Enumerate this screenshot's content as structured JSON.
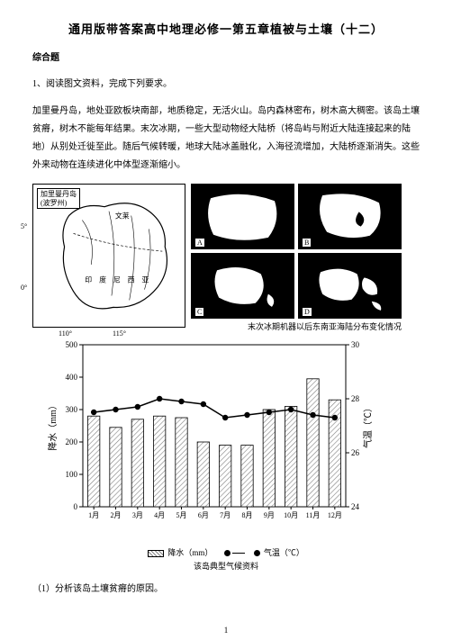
{
  "title": "通用版带答案高中地理必修一第五章植被与土壤（十二）",
  "section_heading": "综合题",
  "q_lead": "1、阅读图文资料，完成下列要求。",
  "paragraph": "加里曼丹岛，地处亚欧板块南部，地质稳定，无活火山。岛内森林密布，树木高大稠密。该岛土壤贫瘠，树木不能每年结果。末次冰期，一些大型动物经大陆桥（将岛屿与附近大陆连接起来的陆地）从别处迁徙至此。随后气候转暖，地球大陆冰盖融化，入海径流增加，大陆桥逐渐消失。这些外来动物在连续进化中体型逐渐缩小。",
  "map": {
    "label_line1": "加里曼丹岛",
    "label_line2": "(波罗州)",
    "place1": "文莱",
    "place2": "印 度 尼 西 亚",
    "lat1": "5°",
    "lat2": "0°",
    "lon1": "110°",
    "lon2": "115°"
  },
  "small_map_labels": [
    "A",
    "B",
    "C",
    "D"
  ],
  "small_map_caption": "末次冰期机器以后东南亚海陆分布变化情况",
  "chart": {
    "type": "bar+line",
    "months": [
      "1月",
      "2月",
      "3月",
      "4月",
      "5月",
      "6月",
      "7月",
      "8月",
      "9月",
      "10月",
      "11月",
      "12月"
    ],
    "precip_values": [
      280,
      245,
      270,
      280,
      275,
      200,
      190,
      190,
      300,
      310,
      395,
      330
    ],
    "temp_values": [
      27.5,
      27.6,
      27.7,
      28.0,
      27.9,
      27.8,
      27.3,
      27.4,
      27.5,
      27.6,
      27.4,
      27.3
    ],
    "y1_label": "降水（mm）",
    "y1_min": 0,
    "y1_max": 500,
    "y1_step": 100,
    "y2_label": "气温（℃）",
    "y2_min": 24,
    "y2_max": 30,
    "y2_step": 2,
    "bar_fill": "hatch",
    "bar_color": "#808080",
    "line_color": "#000000",
    "marker": "circle",
    "background": "#ffffff",
    "legend_precip": "降水（mm）",
    "legend_temp": "气温（℃）",
    "caption": "该岛典型气候资料"
  },
  "question1": "（1）分析该岛土壤贫瘠的原因。",
  "page_number": "1"
}
